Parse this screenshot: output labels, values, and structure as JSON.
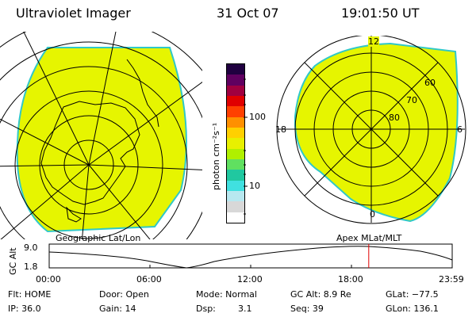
{
  "header": {
    "instrument": "Ultraviolet Imager",
    "date": "31 Oct 07",
    "time": "19:01:50 UT"
  },
  "left_panel": {
    "caption": "Geographic Lat/Lon"
  },
  "right_panel": {
    "caption": "Apex MLat/MLT",
    "mlt_labels": [
      "12",
      "18",
      "6",
      "0"
    ],
    "mlat_labels": [
      "60",
      "70",
      "80"
    ]
  },
  "colorbar": {
    "unit_label": "photon cm⁻²s⁻¹",
    "ticks": [
      "100",
      "10"
    ],
    "colors": [
      "#ffffff",
      "#d8d8d8",
      "#b8e8f0",
      "#40e0e0",
      "#20c8a0",
      "#60e060",
      "#b0f000",
      "#e8f000",
      "#ffd000",
      "#ff9000",
      "#ff4000",
      "#e00000",
      "#a00040",
      "#600060",
      "#200040"
    ]
  },
  "timeline": {
    "ylabel": "GC Alt",
    "y_ticks": [
      "9.0",
      "1.8"
    ],
    "x_ticks": [
      "00:00",
      "06:00",
      "12:00",
      "18:00",
      "23:59"
    ],
    "current_marker_hour": 19.03
  },
  "status": {
    "flt": "Flt: HOME",
    "ip": "IP: 36.0",
    "door": "Door: Open",
    "gain": "Gain: 14",
    "mode": "Mode: Normal",
    "dsp_label": "Dsp:",
    "dsp_value": "3.1",
    "gc_alt": "GC Alt: 8.9 Re",
    "seq": "Seq: 39",
    "glat": "GLat: −77.5",
    "glon": "GLon: 136.1"
  },
  "style": {
    "fill": "#e6f500",
    "fill_edge": "#30c8c8",
    "marker": "#e00000"
  }
}
